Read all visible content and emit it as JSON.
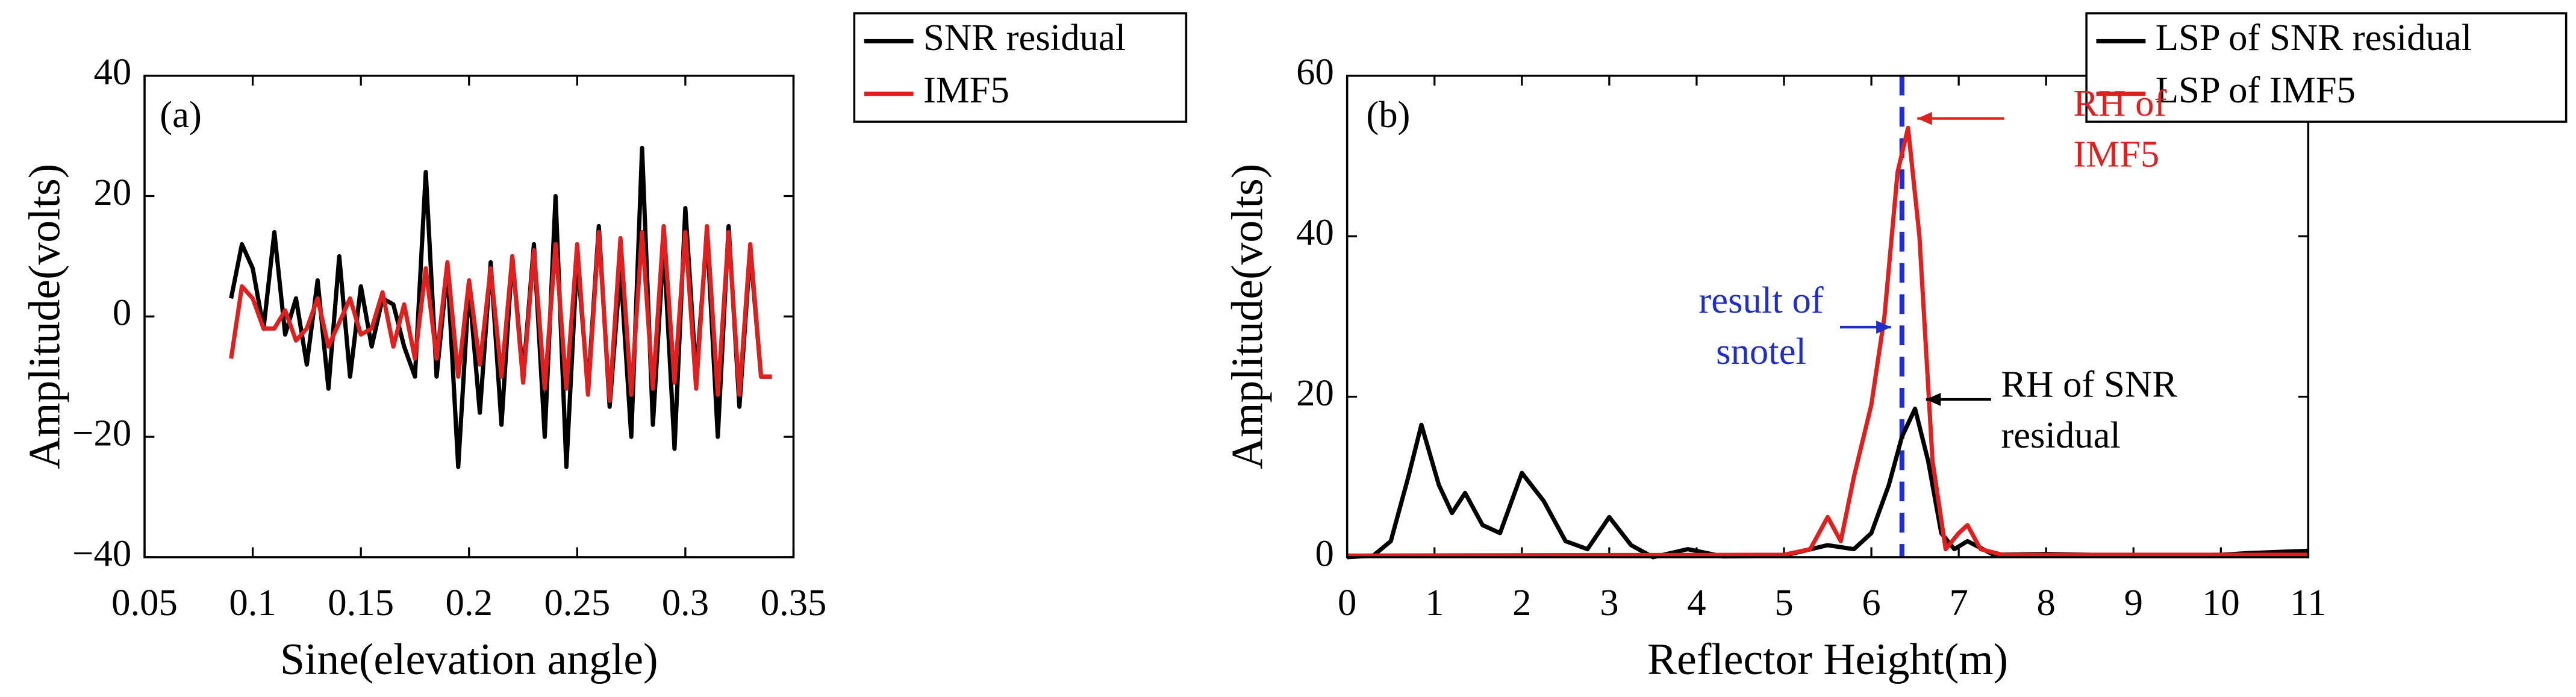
{
  "chart_data": [
    {
      "type": "line",
      "panel_label": "(a)",
      "xlabel": "Sine(elevation angle)",
      "ylabel": "Amplitude(volts)",
      "xlim": [
        0.05,
        0.35
      ],
      "xticks": [
        0.05,
        0.1,
        0.15,
        0.2,
        0.25,
        0.3,
        0.35
      ],
      "ylim": [
        -40,
        40
      ],
      "yticks": [
        {
          "value": -40,
          "label": "−40"
        },
        {
          "value": -20,
          "label": "−20"
        },
        0,
        20,
        40
      ],
      "legend": "upper right",
      "x": [
        0.09,
        0.095,
        0.1,
        0.105,
        0.11,
        0.115,
        0.12,
        0.125,
        0.13,
        0.135,
        0.14,
        0.145,
        0.15,
        0.155,
        0.16,
        0.165,
        0.17,
        0.175,
        0.18,
        0.185,
        0.19,
        0.195,
        0.2,
        0.205,
        0.21,
        0.215,
        0.22,
        0.225,
        0.23,
        0.235,
        0.24,
        0.245,
        0.25,
        0.255,
        0.26,
        0.265,
        0.27,
        0.275,
        0.28,
        0.285,
        0.29,
        0.295,
        0.3,
        0.305,
        0.31,
        0.315,
        0.32,
        0.325,
        0.33,
        0.335,
        0.34
      ],
      "series": [
        {
          "name": "SNR residual",
          "color": "#000000",
          "values": [
            3,
            12,
            8,
            -2,
            14,
            -3,
            3,
            -8,
            6,
            -12,
            10,
            -10,
            5,
            -5,
            3,
            2,
            -5,
            -10,
            24,
            -10,
            8,
            -25,
            5,
            -16,
            9,
            -18,
            10,
            -10,
            12,
            -20,
            20,
            -25,
            10,
            -12,
            15,
            -15,
            8,
            -20,
            28,
            -18,
            12,
            -22,
            18,
            -10,
            14,
            -20,
            15,
            -15,
            11,
            -10,
            -10
          ]
        },
        {
          "name": "IMF5",
          "color": "#e0201e",
          "values": [
            -7,
            5,
            3,
            -2,
            -2,
            1,
            -4,
            -2,
            3,
            -5,
            -1,
            3,
            -3,
            -2,
            4,
            -5,
            2,
            -7,
            8,
            -7,
            9,
            -10,
            6,
            -8,
            8,
            -10,
            10,
            -11,
            11,
            -12,
            12,
            -12,
            12,
            -13,
            14,
            -14,
            13,
            -13,
            14,
            -12,
            15,
            -11,
            14,
            -12,
            15,
            -13,
            14,
            -13,
            12,
            -10,
            -10
          ]
        }
      ]
    },
    {
      "type": "line",
      "panel_label": "(b)",
      "xlabel": "Reflector Height(m)",
      "ylabel": "Amplitude(volts)",
      "xlim": [
        0,
        11
      ],
      "xticks": [
        0,
        1,
        2,
        3,
        4,
        5,
        6,
        7,
        8,
        9,
        10,
        11
      ],
      "ylim": [
        0,
        60
      ],
      "yticks": [
        0,
        20,
        40,
        60
      ],
      "legend": "upper right",
      "series": [
        {
          "name": "LSP of SNR residual",
          "color": "#000000",
          "x": [
            0,
            0.3,
            0.5,
            0.7,
            0.85,
            1.05,
            1.2,
            1.35,
            1.55,
            1.75,
            2.0,
            2.25,
            2.5,
            2.75,
            3.0,
            3.25,
            3.5,
            3.9,
            4.3,
            5.0,
            5.5,
            5.8,
            6.0,
            6.2,
            6.35,
            6.5,
            6.65,
            6.8,
            6.95,
            7.1,
            7.4,
            8,
            9,
            10,
            10.3,
            11
          ],
          "values": [
            0,
            0.2,
            2,
            10,
            16.5,
            9,
            5.5,
            8,
            4,
            3,
            10.5,
            7,
            2,
            1,
            5,
            1.5,
            0,
            1,
            0.1,
            0.2,
            1.5,
            1,
            3,
            9,
            15,
            18.5,
            12,
            3,
            1,
            2,
            0.3,
            0.4,
            0.2,
            0.3,
            0.5,
            0.8
          ]
        },
        {
          "name": "LSP of IMF5",
          "color": "#e0201e",
          "x": [
            0,
            5.0,
            5.3,
            5.5,
            5.65,
            5.8,
            6.0,
            6.15,
            6.3,
            6.42,
            6.55,
            6.7,
            6.85,
            7.0,
            7.1,
            7.25,
            7.5,
            8,
            11
          ],
          "values": [
            0.2,
            0.3,
            1,
            5,
            2,
            10,
            19,
            30,
            48,
            53.5,
            40,
            12,
            1,
            3,
            4,
            1,
            0.3,
            0.3,
            0.3
          ]
        }
      ],
      "vline": {
        "x": 6.35,
        "color": "#1f2fc8"
      },
      "annotations": [
        {
          "text": [
            "RH of",
            "IMF5"
          ],
          "color": "#e0201e"
        },
        {
          "text": [
            "result of",
            "snotel"
          ],
          "color": "#1f2fc8"
        },
        {
          "text": [
            "RH of SNR",
            "residual"
          ],
          "color": "#000000"
        }
      ]
    }
  ]
}
